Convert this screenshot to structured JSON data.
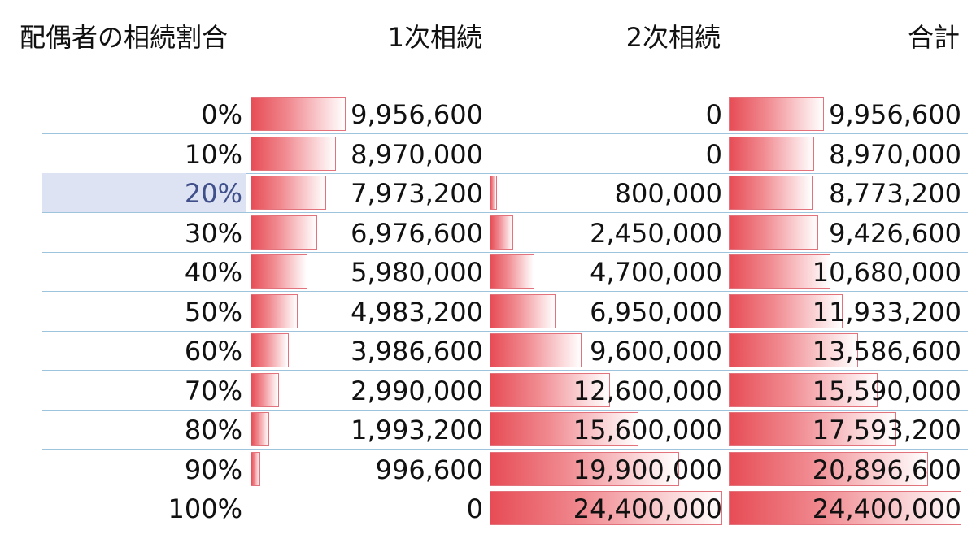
{
  "headers": {
    "ratio": "配偶者の相続割合",
    "first": "1次相続",
    "second": "2次相続",
    "total": "合計"
  },
  "bar_max": 24400000,
  "selected_row": 2,
  "rows": [
    {
      "ratio": "0%",
      "first": "9,956,600",
      "second": "0",
      "total": "9,956,600",
      "first_value": 9956600,
      "second_value": 0,
      "total_value": 9956600
    },
    {
      "ratio": "10%",
      "first": "8,970,000",
      "second": "0",
      "total": "8,970,000",
      "first_value": 8970000,
      "second_value": 0,
      "total_value": 8970000
    },
    {
      "ratio": "20%",
      "first": "7,973,200",
      "second": "800,000",
      "total": "8,773,200",
      "first_value": 7973200,
      "second_value": 800000,
      "total_value": 8773200
    },
    {
      "ratio": "30%",
      "first": "6,976,600",
      "second": "2,450,000",
      "total": "9,426,600",
      "first_value": 6976600,
      "second_value": 2450000,
      "total_value": 9426600
    },
    {
      "ratio": "40%",
      "first": "5,980,000",
      "second": "4,700,000",
      "total": "10,680,000",
      "first_value": 5980000,
      "second_value": 4700000,
      "total_value": 10680000
    },
    {
      "ratio": "50%",
      "first": "4,983,200",
      "second": "6,950,000",
      "total": "11,933,200",
      "first_value": 4983200,
      "second_value": 6950000,
      "total_value": 11933200
    },
    {
      "ratio": "60%",
      "first": "3,986,600",
      "second": "9,600,000",
      "total": "13,586,600",
      "first_value": 3986600,
      "second_value": 9600000,
      "total_value": 13586600
    },
    {
      "ratio": "70%",
      "first": "2,990,000",
      "second": "12,600,000",
      "total": "15,590,000",
      "first_value": 2990000,
      "second_value": 12600000,
      "total_value": 15590000
    },
    {
      "ratio": "80%",
      "first": "1,993,200",
      "second": "15,600,000",
      "total": "17,593,200",
      "first_value": 1993200,
      "second_value": 15600000,
      "total_value": 17593200
    },
    {
      "ratio": "90%",
      "first": "996,600",
      "second": "19,900,000",
      "total": "20,896,600",
      "first_value": 996600,
      "second_value": 19900000,
      "total_value": 20896600
    },
    {
      "ratio": "100%",
      "first": "0",
      "second": "24,400,000",
      "total": "24,400,000",
      "first_value": 0,
      "second_value": 24400000,
      "total_value": 24400000
    }
  ]
}
